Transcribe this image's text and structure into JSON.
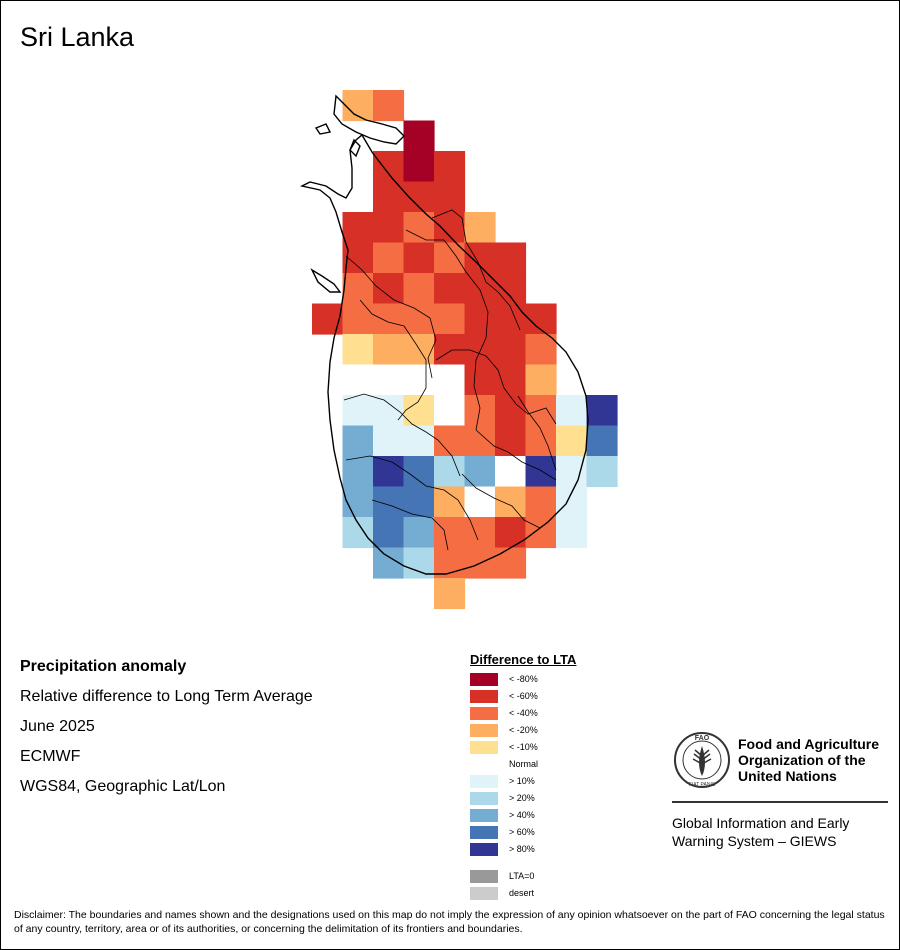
{
  "title": "Sri Lanka",
  "info": {
    "variable": "Precipitation anomaly",
    "measure": "Relative difference to Long Term Average",
    "period": "June 2025",
    "source": "ECMWF",
    "projection": "WGS84, Geographic Lat/Lon"
  },
  "legend": {
    "title": "Difference to LTA",
    "items": [
      {
        "label": "< -80%",
        "color": "#a50026"
      },
      {
        "label": "< -60%",
        "color": "#d73027"
      },
      {
        "label": "< -40%",
        "color": "#f46d43"
      },
      {
        "label": "< -20%",
        "color": "#fdae61"
      },
      {
        "label": "< -10%",
        "color": "#fee090"
      },
      {
        "label": "Normal",
        "color": "#ffffff"
      },
      {
        "label": "> 10%",
        "color": "#e0f3f8"
      },
      {
        "label": "> 20%",
        "color": "#abd9e9"
      },
      {
        "label": "> 40%",
        "color": "#74add1"
      },
      {
        "label": "> 60%",
        "color": "#4575b4"
      },
      {
        "label": "> 80%",
        "color": "#313695"
      }
    ],
    "extra": [
      {
        "label": "LTA=0",
        "color": "#999999"
      },
      {
        "label": "desert",
        "color": "#cccccc"
      }
    ]
  },
  "organization": {
    "name": "Food and Agriculture Organization of the United Nations",
    "system": "Global Information and Early Warning System – GIEWS",
    "logo_text": "FAO",
    "logo_motto": "FIAT PANIS"
  },
  "disclaimer": "Disclaimer: The boundaries and names shown and the designations used on this map do not imply the expression of any opinion whatsoever on the part of FAO concerning the legal status of any country, territory, area or of its authorities, or concerning the delimitation of its frontiers and boundaries.",
  "grid": {
    "cells": [
      [
        0,
        1,
        3
      ],
      [
        0,
        2,
        2
      ],
      [
        1,
        3,
        0
      ],
      [
        2,
        2,
        1
      ],
      [
        2,
        3,
        0
      ],
      [
        2,
        4,
        1
      ],
      [
        3,
        2,
        1
      ],
      [
        3,
        3,
        1
      ],
      [
        3,
        4,
        1
      ],
      [
        4,
        1,
        1
      ],
      [
        4,
        2,
        1
      ],
      [
        4,
        3,
        2
      ],
      [
        4,
        4,
        1
      ],
      [
        4,
        5,
        3
      ],
      [
        5,
        1,
        1
      ],
      [
        5,
        2,
        2
      ],
      [
        5,
        3,
        1
      ],
      [
        5,
        4,
        2
      ],
      [
        5,
        5,
        1
      ],
      [
        5,
        6,
        1
      ],
      [
        6,
        1,
        2
      ],
      [
        6,
        2,
        1
      ],
      [
        6,
        3,
        2
      ],
      [
        6,
        4,
        1
      ],
      [
        6,
        5,
        1
      ],
      [
        6,
        6,
        1
      ],
      [
        7,
        0,
        1
      ],
      [
        7,
        1,
        2
      ],
      [
        7,
        2,
        2
      ],
      [
        7,
        3,
        2
      ],
      [
        7,
        4,
        2
      ],
      [
        7,
        5,
        1
      ],
      [
        7,
        6,
        1
      ],
      [
        7,
        7,
        1
      ],
      [
        8,
        1,
        4
      ],
      [
        8,
        2,
        3
      ],
      [
        8,
        3,
        3
      ],
      [
        8,
        4,
        1
      ],
      [
        8,
        5,
        1
      ],
      [
        8,
        6,
        1
      ],
      [
        8,
        7,
        2
      ],
      [
        9,
        1,
        5
      ],
      [
        9,
        2,
        5
      ],
      [
        9,
        3,
        5
      ],
      [
        9,
        4,
        5
      ],
      [
        9,
        5,
        1
      ],
      [
        9,
        6,
        1
      ],
      [
        9,
        7,
        3
      ],
      [
        10,
        1,
        6
      ],
      [
        10,
        2,
        6
      ],
      [
        10,
        3,
        4
      ],
      [
        10,
        4,
        5
      ],
      [
        10,
        5,
        2
      ],
      [
        10,
        6,
        1
      ],
      [
        10,
        7,
        2
      ],
      [
        10,
        8,
        6
      ],
      [
        10,
        9,
        10
      ],
      [
        11,
        1,
        8
      ],
      [
        11,
        2,
        6
      ],
      [
        11,
        3,
        6
      ],
      [
        11,
        4,
        2
      ],
      [
        11,
        5,
        2
      ],
      [
        11,
        6,
        1
      ],
      [
        11,
        7,
        2
      ],
      [
        11,
        8,
        4
      ],
      [
        11,
        9,
        9
      ],
      [
        12,
        1,
        8
      ],
      [
        12,
        2,
        10
      ],
      [
        12,
        3,
        9
      ],
      [
        12,
        4,
        7
      ],
      [
        12,
        5,
        8
      ],
      [
        12,
        6,
        5
      ],
      [
        12,
        7,
        10
      ],
      [
        12,
        8,
        6
      ],
      [
        12,
        9,
        7
      ],
      [
        13,
        1,
        8
      ],
      [
        13,
        2,
        9
      ],
      [
        13,
        3,
        9
      ],
      [
        13,
        4,
        3
      ],
      [
        13,
        5,
        5
      ],
      [
        13,
        6,
        3
      ],
      [
        13,
        7,
        2
      ],
      [
        13,
        8,
        6
      ],
      [
        14,
        1,
        7
      ],
      [
        14,
        2,
        9
      ],
      [
        14,
        3,
        8
      ],
      [
        14,
        4,
        2
      ],
      [
        14,
        5,
        2
      ],
      [
        14,
        6,
        1
      ],
      [
        14,
        7,
        2
      ],
      [
        14,
        8,
        6
      ],
      [
        15,
        2,
        8
      ],
      [
        15,
        3,
        7
      ],
      [
        15,
        4,
        2
      ],
      [
        15,
        5,
        2
      ],
      [
        15,
        6,
        2
      ],
      [
        16,
        4,
        3
      ]
    ]
  }
}
